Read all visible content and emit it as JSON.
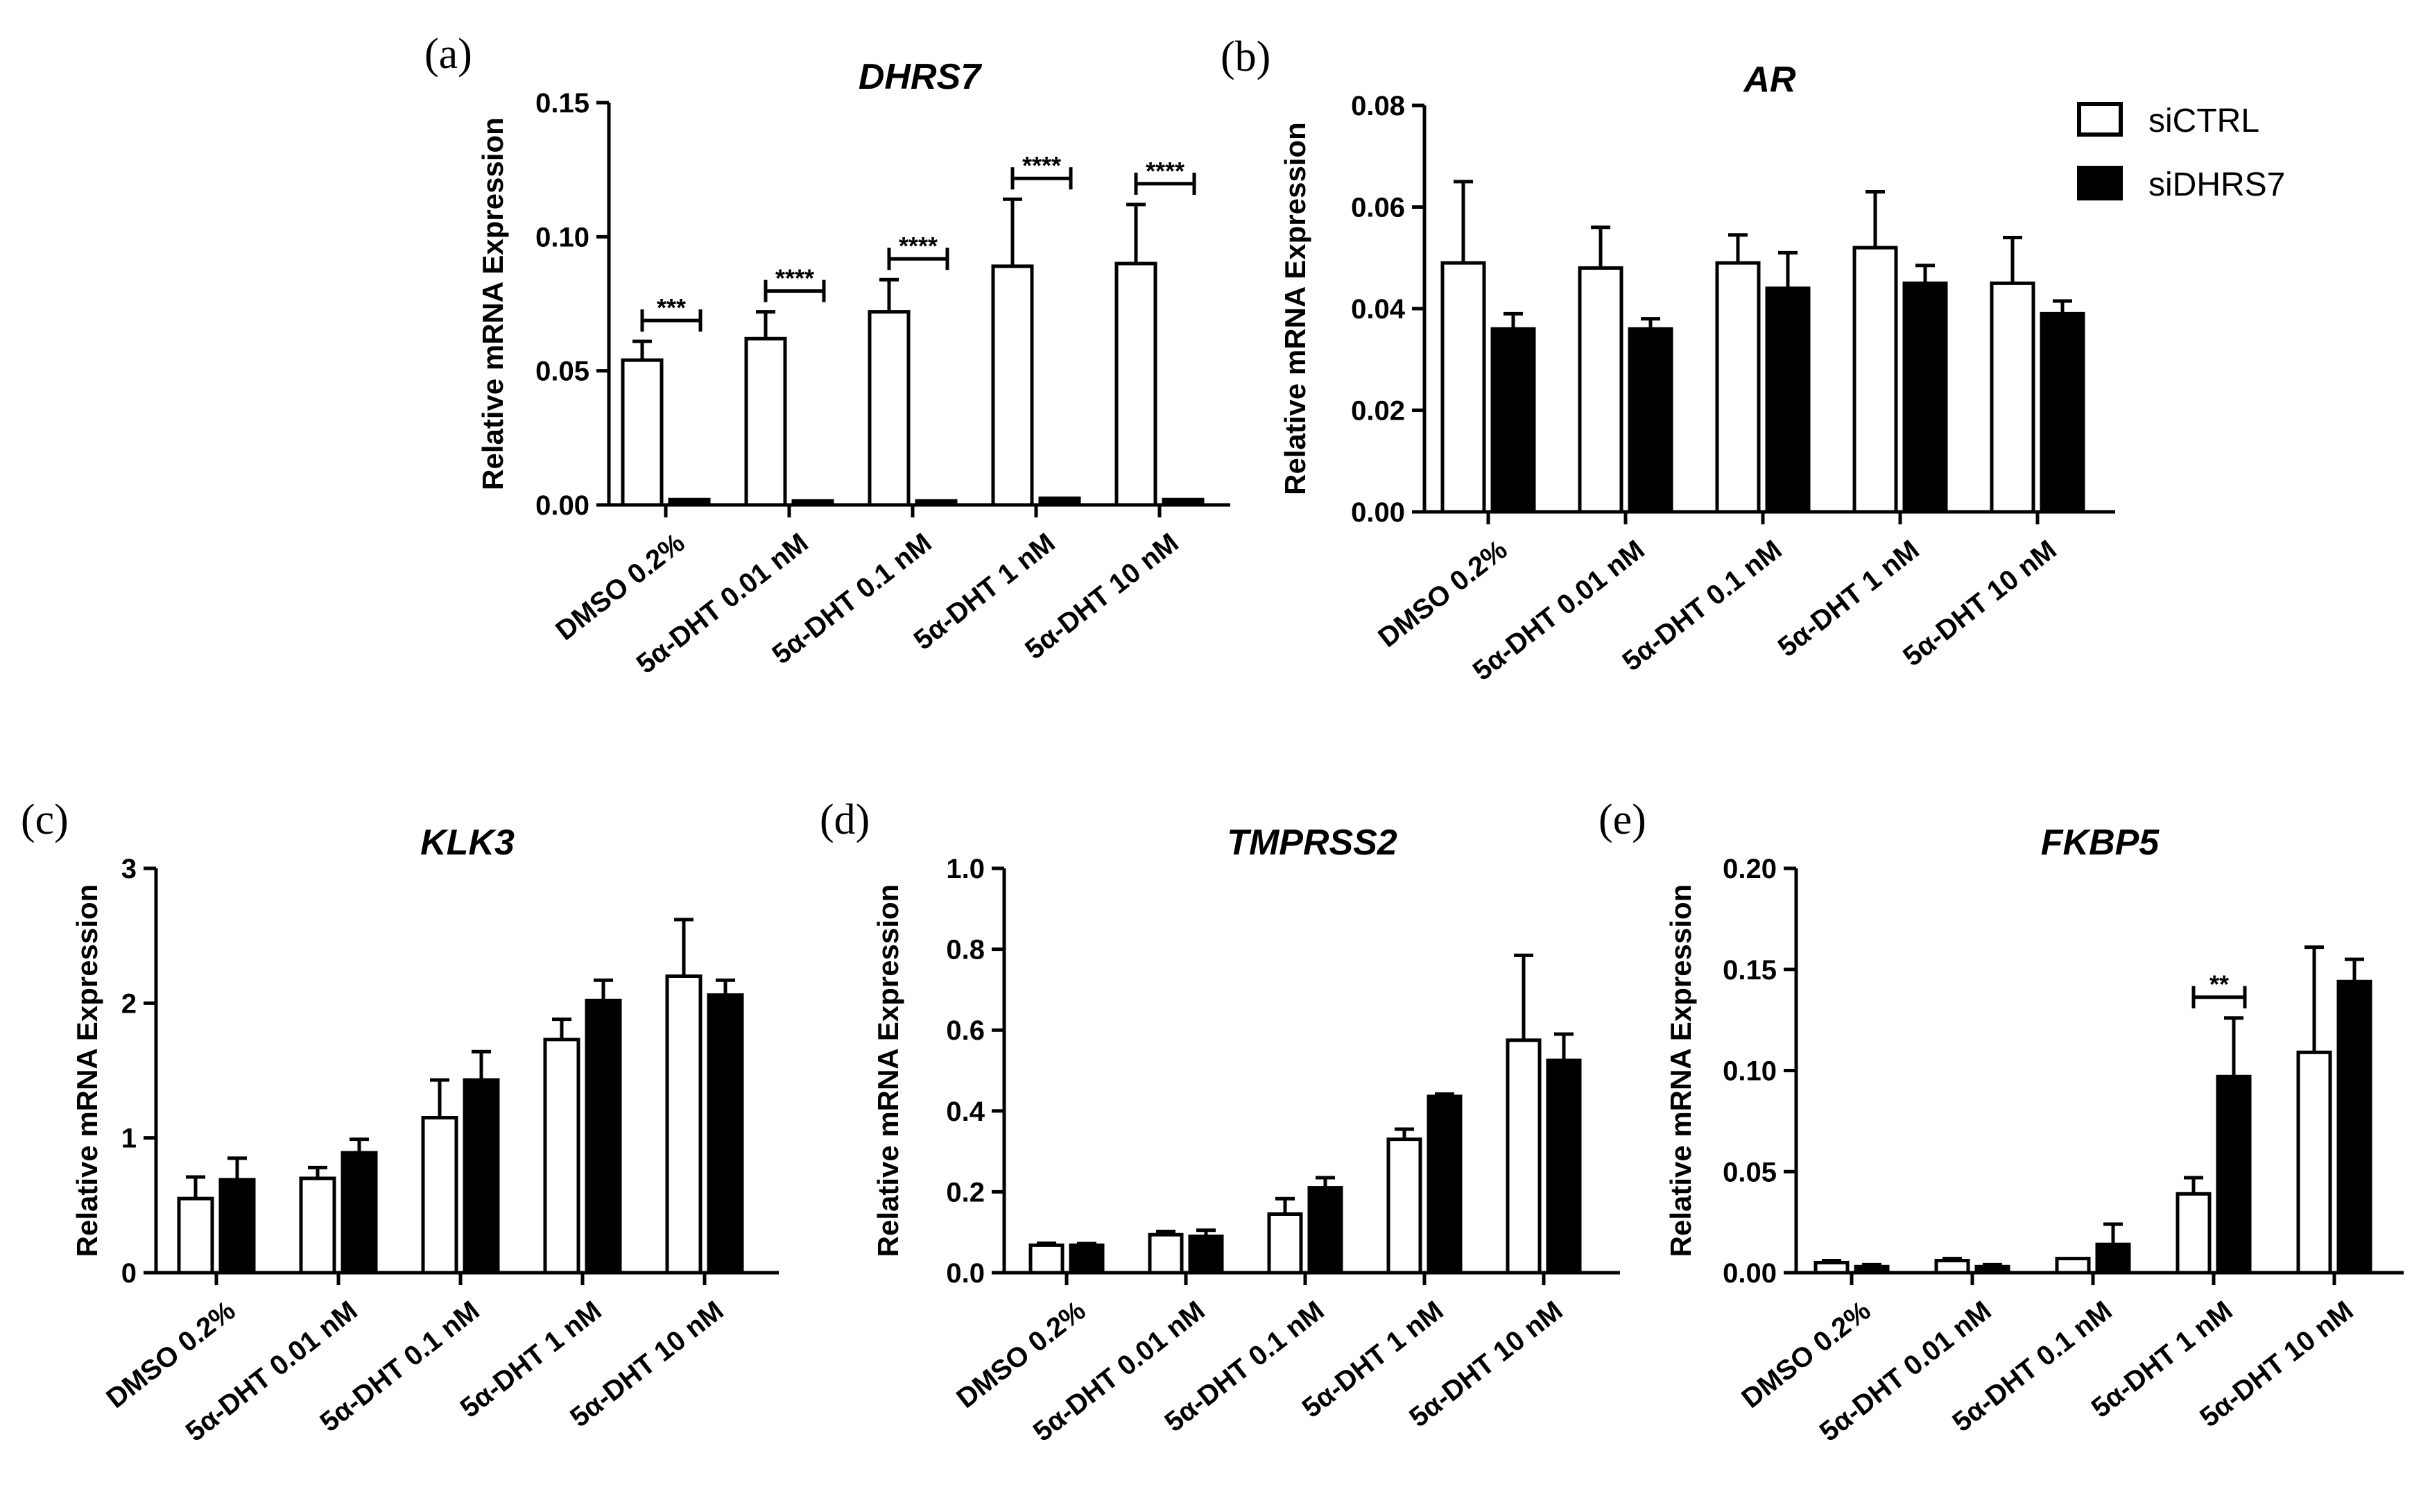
{
  "legend": [
    {
      "name": "siCTRL",
      "fill": "#ffffff"
    },
    {
      "name": "siDHRS7",
      "fill": "#000000"
    }
  ],
  "colors": {
    "stroke": "#000000",
    "ctrl": "#ffffff",
    "kd": "#000000"
  },
  "chart_data": [
    {
      "panel": "(a)",
      "title": "DHRS7",
      "type": "bar",
      "ylabel": "Relative mRNA Expression",
      "ylim": [
        0,
        0.15
      ],
      "yticks": [
        "0.00",
        "0.05",
        "0.10",
        "0.15"
      ],
      "categories": [
        "DMSO 0.2%",
        "5α-DHT 0.01 nM",
        "5α-DHT 0.1 nM",
        "5α-DHT 1 nM",
        "5α-DHT 10 nM"
      ],
      "series": [
        {
          "name": "siCTRL",
          "values": [
            0.054,
            0.062,
            0.072,
            0.089,
            0.09
          ],
          "errors": [
            0.007,
            0.01,
            0.012,
            0.025,
            0.022
          ]
        },
        {
          "name": "siDHRS7",
          "values": [
            0.002,
            0.0015,
            0.0015,
            0.0025,
            0.002
          ],
          "errors": [
            0,
            0,
            0,
            0,
            0
          ]
        }
      ],
      "significance": [
        "***",
        "****",
        "****",
        "****",
        "****"
      ]
    },
    {
      "panel": "(b)",
      "title": "AR",
      "type": "bar",
      "ylabel": "Relative mRNA Expression",
      "ylim": [
        0,
        0.08
      ],
      "yticks": [
        "0.00",
        "0.02",
        "0.04",
        "0.06",
        "0.08"
      ],
      "categories": [
        "DMSO 0.2%",
        "5α-DHT 0.01 nM",
        "5α-DHT 0.1 nM",
        "5α-DHT 1 nM",
        "5α-DHT 10 nM"
      ],
      "series": [
        {
          "name": "siCTRL",
          "values": [
            0.049,
            0.048,
            0.049,
            0.052,
            0.045
          ],
          "errors": [
            0.016,
            0.008,
            0.0055,
            0.011,
            0.009
          ]
        },
        {
          "name": "siDHRS7",
          "values": [
            0.036,
            0.036,
            0.044,
            0.045,
            0.039
          ],
          "errors": [
            0.003,
            0.002,
            0.007,
            0.0035,
            0.0025
          ]
        }
      ],
      "significance": [
        "",
        "",
        "",
        "",
        ""
      ]
    },
    {
      "panel": "(c)",
      "title": "KLK3",
      "type": "bar",
      "ylabel": "Relative mRNA Expression",
      "ylim": [
        0,
        3
      ],
      "yticks": [
        "0",
        "1",
        "2",
        "3"
      ],
      "categories": [
        "DMSO 0.2%",
        "5α-DHT 0.01 nM",
        "5α-DHT 0.1 nM",
        "5α-DHT 1 nM",
        "5α-DHT 10 nM"
      ],
      "series": [
        {
          "name": "siCTRL",
          "values": [
            0.55,
            0.7,
            1.15,
            1.73,
            2.2
          ],
          "errors": [
            0.16,
            0.08,
            0.28,
            0.15,
            0.42
          ]
        },
        {
          "name": "siDHRS7",
          "values": [
            0.69,
            0.89,
            1.43,
            2.02,
            2.06
          ],
          "errors": [
            0.16,
            0.1,
            0.21,
            0.15,
            0.11
          ]
        }
      ],
      "significance": [
        "",
        "",
        "",
        "",
        ""
      ]
    },
    {
      "panel": "(d)",
      "title": "TMPRSS2",
      "type": "bar",
      "ylabel": "Relative mRNA Expression",
      "ylim": [
        0,
        1.0
      ],
      "yticks": [
        "0.0",
        "0.2",
        "0.4",
        "0.6",
        "0.8",
        "1.0"
      ],
      "categories": [
        "DMSO 0.2%",
        "5α-DHT 0.01 nM",
        "5α-DHT 0.1 nM",
        "5α-DHT 1 nM",
        "5α-DHT 10 nM"
      ],
      "series": [
        {
          "name": "siCTRL",
          "values": [
            0.068,
            0.094,
            0.145,
            0.33,
            0.575
          ],
          "errors": [
            0.005,
            0.008,
            0.038,
            0.025,
            0.21
          ]
        },
        {
          "name": "siDHRS7",
          "values": [
            0.068,
            0.09,
            0.21,
            0.436,
            0.525
          ],
          "errors": [
            0.004,
            0.015,
            0.025,
            0.006,
            0.065
          ]
        }
      ],
      "significance": [
        "",
        "",
        "",
        "",
        ""
      ]
    },
    {
      "panel": "(e)",
      "title": "FKBP5",
      "type": "bar",
      "ylabel": "Relative mRNA Expression",
      "ylim": [
        0,
        0.2
      ],
      "yticks": [
        "0.00",
        "0.05",
        "0.10",
        "0.15",
        "0.20"
      ],
      "categories": [
        "DMSO 0.2%",
        "5α-DHT 0.01 nM",
        "5α-DHT 0.1 nM",
        "5α-DHT 1 nM",
        "5α-DHT 10 nM"
      ],
      "series": [
        {
          "name": "siCTRL",
          "values": [
            0.005,
            0.006,
            0.007,
            0.039,
            0.109
          ],
          "errors": [
            0.001,
            0.001,
            0,
            0.008,
            0.052
          ]
        },
        {
          "name": "siDHRS7",
          "values": [
            0.003,
            0.003,
            0.014,
            0.097,
            0.144
          ],
          "errors": [
            0.001,
            0.001,
            0.01,
            0.029,
            0.011
          ]
        }
      ],
      "significance": [
        "",
        "",
        "",
        "**",
        ""
      ]
    }
  ]
}
